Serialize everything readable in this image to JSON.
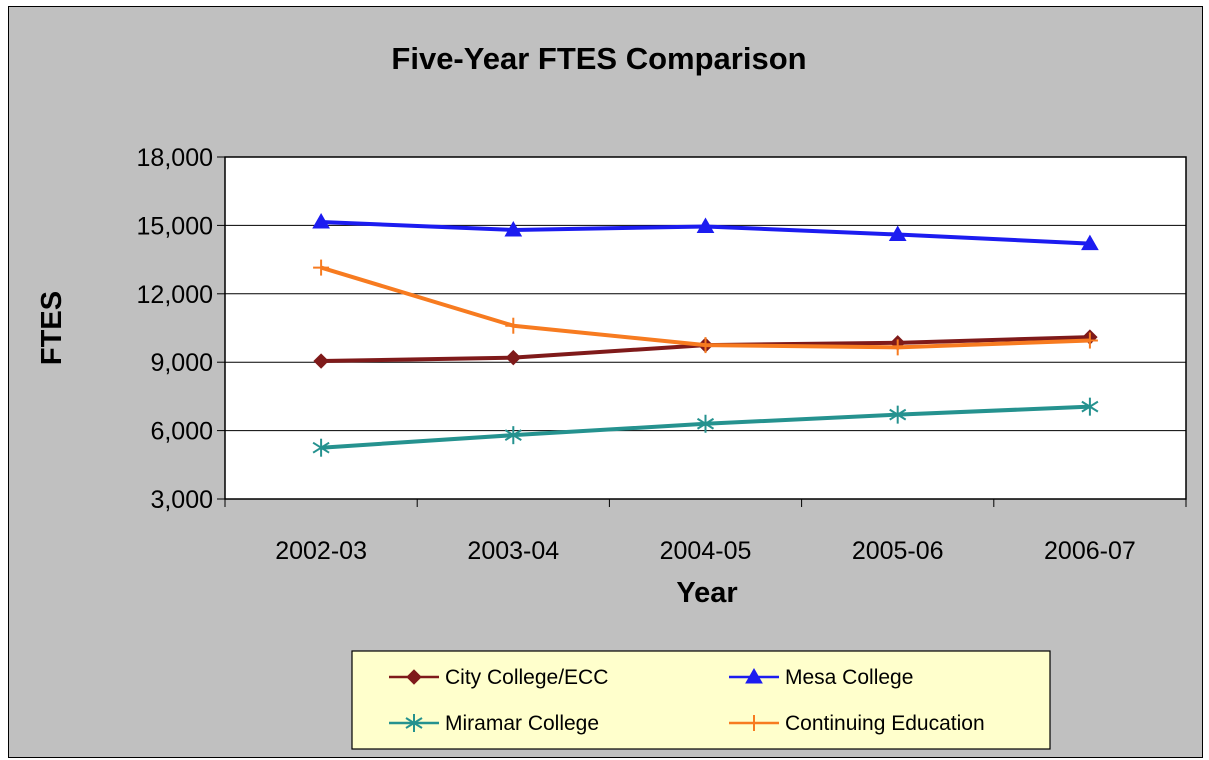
{
  "chart_data": {
    "type": "line",
    "title": "Five-Year FTES Comparison",
    "xlabel": "Year",
    "ylabel": "FTES",
    "categories": [
      "2002-03",
      "2003-04",
      "2004-05",
      "2005-06",
      "2006-07"
    ],
    "ylim": [
      3000,
      18000
    ],
    "yticks": [
      3000,
      6000,
      9000,
      12000,
      15000,
      18000
    ],
    "ytick_labels": [
      "3,000",
      "6,000",
      "9,000",
      "12,000",
      "15,000",
      "18,000"
    ],
    "grid": true,
    "legend_position": "bottom",
    "series": [
      {
        "name": "City College/ECC",
        "color": "#7f1a1a",
        "marker": "diamond",
        "values": [
          9050,
          9200,
          9750,
          9850,
          10100
        ]
      },
      {
        "name": "Mesa College",
        "color": "#1c1cf0",
        "marker": "triangle",
        "values": [
          15150,
          14800,
          14950,
          14600,
          14200
        ]
      },
      {
        "name": "Miramar College",
        "color": "#25928f",
        "marker": "star",
        "values": [
          5250,
          5800,
          6300,
          6700,
          7050
        ]
      },
      {
        "name": "Continuing Education",
        "color": "#f77b20",
        "marker": "plus",
        "values": [
          13150,
          10600,
          9750,
          9650,
          9950
        ]
      }
    ],
    "colors": {
      "background": "#c0c0c0",
      "plot_area": "#ffffff",
      "legend_background": "#ffffcc"
    }
  }
}
